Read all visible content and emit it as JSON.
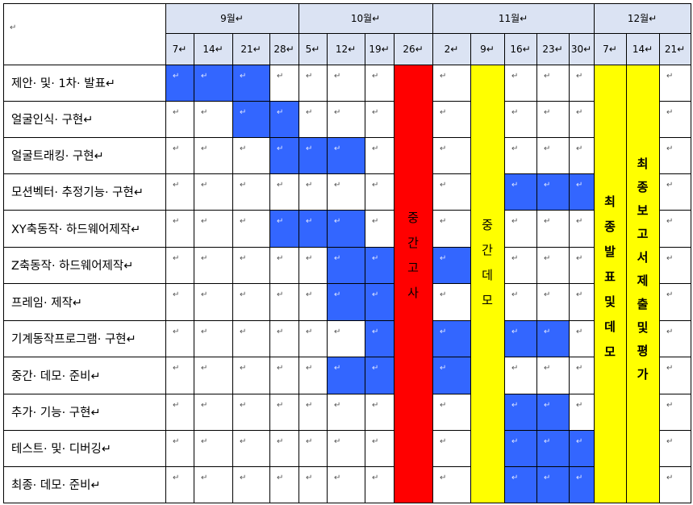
{
  "months": [
    "9월",
    "10월",
    "11월",
    "12월"
  ],
  "weeks": [
    "7",
    "14",
    "21",
    "28",
    "5",
    "12",
    "19",
    "26",
    "2",
    "9",
    "16",
    "23",
    "30",
    "7",
    "14",
    "21"
  ],
  "tasks": [
    "제안· 및· 1차· 발표",
    "얼굴인식· 구현",
    "얼굴트래킹· 구현",
    "모션벡터· 추정기능· 구현",
    "XY축동작· 하드웨어제작",
    "Z축동작· 하드웨어제작",
    "프레임· 제작",
    "기계동작프로그램· 구현",
    "중간· 데모· 준비",
    "추가· 기능· 구현",
    "테스트· 및· 디버깅",
    "최종· 데모· 준비"
  ],
  "bands": [
    {
      "week": 7,
      "text": "중간고사",
      "color": "#ff0000"
    },
    {
      "week": 9,
      "text": "중간데모",
      "color": "#ffff00"
    },
    {
      "week": 13,
      "text": "최종발표및데모",
      "color": "#ffff00"
    },
    {
      "week": 14,
      "text": "최종보고서제출및평가",
      "color": "#ffff00"
    }
  ],
  "schedule": [
    [
      0,
      1,
      2
    ],
    [
      2,
      3
    ],
    [
      3,
      4,
      5
    ],
    [
      10,
      11,
      12
    ],
    [
      3,
      4,
      5
    ],
    [
      5,
      6,
      8
    ],
    [
      5,
      6
    ],
    [
      6,
      8,
      10,
      11
    ],
    [
      5,
      6,
      8
    ],
    [
      10,
      11
    ],
    [
      10,
      11,
      12
    ],
    [
      10,
      11,
      12
    ]
  ],
  "colors": {
    "header_bg": "#dbe3f3",
    "bar": "#3366ff",
    "exam": "#ff0000",
    "demo": "#ffff00"
  },
  "paragraph_mark": "↵"
}
